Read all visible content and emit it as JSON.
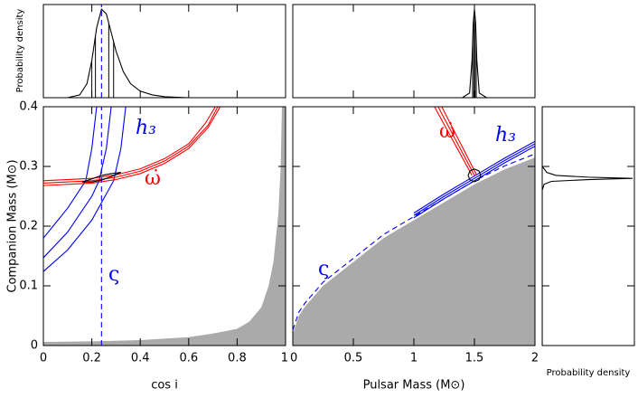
{
  "chart_data": [
    {
      "type": "line",
      "ylabel": "Probability density",
      "xlim": [
        0,
        1
      ],
      "ylim": [
        0,
        1
      ],
      "xticks": [
        0,
        0.2,
        0.4,
        0.6,
        0.8,
        1
      ],
      "series": [
        {
          "color": "#000000",
          "x": [
            0,
            0.1,
            0.15,
            0.18,
            0.2,
            0.22,
            0.24,
            0.26,
            0.28,
            0.3,
            0.33,
            0.36,
            0.4,
            0.45,
            0.5,
            0.6,
            0.8,
            1
          ],
          "values": [
            0,
            0,
            0.03,
            0.15,
            0.4,
            0.75,
            0.95,
            0.9,
            0.7,
            0.5,
            0.28,
            0.15,
            0.07,
            0.03,
            0.01,
            0,
            0,
            0
          ]
        },
        {
          "color": "#0000ff",
          "style": "dashed",
          "x": [
            0.24,
            0.24
          ],
          "values": [
            0,
            1
          ]
        }
      ],
      "markers": [
        0.2,
        0.215,
        0.27,
        0.29
      ]
    },
    {
      "type": "line",
      "xlim": [
        0,
        2
      ],
      "ylim": [
        0,
        1
      ],
      "xticks": [
        0,
        0.5,
        1,
        1.5,
        2
      ],
      "series": [
        {
          "color": "#000000",
          "x": [
            0,
            1.4,
            1.46,
            1.48,
            1.49,
            1.5,
            1.51,
            1.52,
            1.54,
            1.6,
            2
          ],
          "values": [
            0,
            0,
            0.05,
            0.4,
            0.8,
            0.95,
            0.8,
            0.4,
            0.05,
            0,
            0
          ]
        }
      ],
      "markers": [
        1.485,
        1.495,
        1.505,
        1.515
      ]
    },
    {
      "type": "line",
      "xlabel": "cos i",
      "ylabel": "Companion Mass (M⊙)",
      "xlim": [
        0,
        1
      ],
      "ylim": [
        0,
        0.4
      ],
      "xticks": [
        0,
        0.2,
        0.4,
        0.6,
        0.8,
        1
      ],
      "yticks": [
        0,
        0.1,
        0.2,
        0.3,
        0.4
      ],
      "series": [
        {
          "type": "area",
          "color": "#aaaaaa",
          "x": [
            0,
            0.2,
            0.4,
            0.6,
            0.7,
            0.8,
            0.85,
            0.9,
            0.93,
            0.95,
            0.97,
            0.98,
            0.985
          ],
          "values": [
            0.006,
            0.007,
            0.009,
            0.014,
            0.02,
            0.028,
            0.04,
            0.064,
            0.1,
            0.14,
            0.22,
            0.3,
            0.4
          ]
        },
        {
          "name": "h₃",
          "color": "#0000ff",
          "x": [
            0,
            0.1,
            0.2,
            0.29,
            0.32,
            0.34
          ],
          "values": [
            0.124,
            0.16,
            0.21,
            0.276,
            0.33,
            0.4
          ]
        },
        {
          "color": "#0000ff",
          "x": [
            0,
            0.1,
            0.2,
            0.23,
            0.26,
            0.28
          ],
          "values": [
            0.147,
            0.19,
            0.25,
            0.276,
            0.33,
            0.4
          ]
        },
        {
          "color": "#0000ff",
          "x": [
            0,
            0.1,
            0.175,
            0.2,
            0.22
          ],
          "values": [
            0.18,
            0.23,
            0.276,
            0.33,
            0.4
          ]
        },
        {
          "name": "ω̇",
          "color": "#ff0000",
          "x": [
            0,
            0.2,
            0.3,
            0.4,
            0.5,
            0.6,
            0.68,
            0.73
          ],
          "values": [
            0.268,
            0.272,
            0.278,
            0.288,
            0.305,
            0.33,
            0.365,
            0.4
          ]
        },
        {
          "color": "#ff0000",
          "x": [
            0,
            0.2,
            0.3,
            0.4,
            0.5,
            0.6,
            0.68,
            0.72
          ],
          "values": [
            0.272,
            0.276,
            0.282,
            0.292,
            0.309,
            0.334,
            0.369,
            0.4
          ]
        },
        {
          "color": "#ff0000",
          "x": [
            0,
            0.2,
            0.3,
            0.4,
            0.5,
            0.6,
            0.67,
            0.71
          ],
          "values": [
            0.276,
            0.28,
            0.286,
            0.296,
            0.313,
            0.338,
            0.373,
            0.4
          ]
        },
        {
          "name": "ς",
          "color": "#0000ff",
          "style": "dashed",
          "x": [
            0.24,
            0.24
          ],
          "values": [
            0,
            0.4
          ]
        },
        {
          "color": "#000000",
          "x": [
            0.16,
            0.2,
            0.24,
            0.28,
            0.32,
            0.28,
            0.24,
            0.2,
            0.16
          ],
          "values": [
            0.274,
            0.274,
            0.277,
            0.283,
            0.29,
            0.288,
            0.285,
            0.279,
            0.274
          ]
        }
      ]
    },
    {
      "type": "line",
      "xlabel": "Pulsar Mass (M⊙)",
      "xlim": [
        0,
        2
      ],
      "ylim": [
        0,
        0.4
      ],
      "xticks": [
        0,
        0.5,
        1,
        1.5,
        2
      ],
      "yticks": [
        0,
        0.1,
        0.2,
        0.3,
        0.4
      ],
      "series": [
        {
          "type": "area",
          "color": "#aaaaaa",
          "x": [
            0,
            0.05,
            0.1,
            0.25,
            0.5,
            0.75,
            1,
            1.25,
            1.5,
            1.75,
            2
          ],
          "values": [
            0.02,
            0.05,
            0.065,
            0.1,
            0.14,
            0.18,
            0.21,
            0.24,
            0.27,
            0.295,
            0.315
          ]
        },
        {
          "name": "ς",
          "color": "#0000ff",
          "style": "dashed",
          "x": [
            0,
            0.05,
            0.1,
            0.25,
            0.5,
            0.75,
            1,
            1.25,
            1.5,
            1.75,
            2
          ],
          "values": [
            0.026,
            0.056,
            0.071,
            0.106,
            0.146,
            0.186,
            0.216,
            0.246,
            0.276,
            0.301,
            0.321
          ]
        },
        {
          "name": "h₃",
          "color": "#0000ff",
          "x": [
            1,
            1.25,
            1.5,
            1.75,
            2
          ],
          "values": [
            0.222,
            0.254,
            0.284,
            0.314,
            0.342
          ]
        },
        {
          "color": "#0000ff",
          "x": [
            1,
            1.25,
            1.5,
            1.75,
            2
          ],
          "values": [
            0.218,
            0.25,
            0.28,
            0.31,
            0.338
          ]
        },
        {
          "color": "#0000ff",
          "x": [
            1,
            1.25,
            1.5,
            1.75,
            2
          ],
          "values": [
            0.214,
            0.246,
            0.276,
            0.306,
            0.334
          ]
        },
        {
          "name": "ω̇",
          "color": "#ff0000",
          "x": [
            1.17,
            1.48
          ],
          "values": [
            0.4,
            0.285
          ]
        },
        {
          "color": "#ff0000",
          "x": [
            1.2,
            1.5
          ],
          "values": [
            0.4,
            0.285
          ]
        },
        {
          "color": "#ff0000",
          "x": [
            1.23,
            1.52
          ],
          "values": [
            0.4,
            0.285
          ]
        },
        {
          "color": "#000000",
          "x": [
            1.552,
            1.537,
            1.5,
            1.463,
            1.448,
            1.463,
            1.5,
            1.537,
            1.552
          ],
          "values": [
            0.285,
            0.2925,
            0.2956,
            0.2925,
            0.285,
            0.2775,
            0.2744,
            0.2775,
            0.285
          ]
        }
      ]
    },
    {
      "type": "line",
      "xlabel": "Probability density",
      "xlim": [
        0,
        1
      ],
      "ylim": [
        0,
        0.4
      ],
      "yticks": [
        0,
        0.1,
        0.2,
        0.3,
        0.4
      ],
      "series": [
        {
          "color": "#000000",
          "x": [
            0,
            0,
            0.02,
            0.1,
            0.5,
            0.98,
            0.5,
            0.15,
            0.05,
            0,
            0
          ],
          "values": [
            0,
            0.26,
            0.27,
            0.275,
            0.278,
            0.28,
            0.282,
            0.285,
            0.29,
            0.3,
            0.4
          ]
        }
      ]
    }
  ]
}
